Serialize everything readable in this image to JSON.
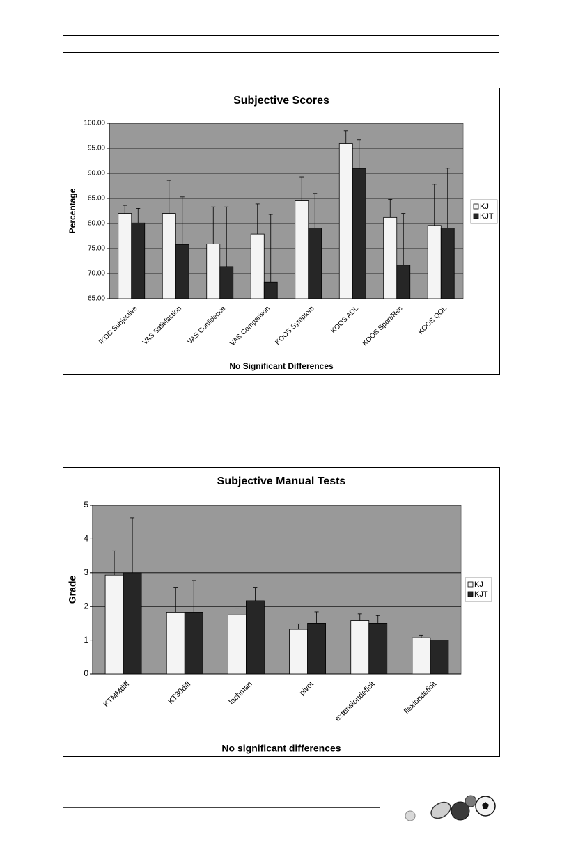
{
  "charts": [
    {
      "type": "bar",
      "title": "Subjective Scores",
      "xlabel": "No Significant Differences",
      "ylabel": "Percentage",
      "ylim": [
        65,
        100
      ],
      "yticks": [
        "65.00",
        "70.00",
        "75.00",
        "80.00",
        "85.00",
        "90.00",
        "95.00",
        "100.00"
      ],
      "categories": [
        "IKDC Subjective",
        "VAS Satisfaction",
        "VAS Confidence",
        "VAS Comparison",
        "KOOS Symptom",
        "KOOS ADL",
        "KOOS Sport/Rec",
        "KOOS QOL"
      ],
      "series": [
        {
          "name": "KJ",
          "values": [
            82.0,
            82.0,
            75.9,
            77.9,
            84.5,
            95.9,
            81.2,
            79.6
          ],
          "errors": [
            1.6,
            6.6,
            7.4,
            6.0,
            4.8,
            2.6,
            3.6,
            8.2
          ]
        },
        {
          "name": "KJT",
          "values": [
            80.1,
            75.8,
            71.4,
            68.3,
            79.1,
            90.9,
            71.7,
            79.1
          ],
          "errors": [
            2.9,
            9.5,
            11.9,
            13.5,
            6.9,
            5.8,
            10.3,
            11.9
          ]
        }
      ],
      "grid": true,
      "legend": "right",
      "colors": {
        "plot_bg": "#999999",
        "kj": "#f4f4f4",
        "kjt": "#262626"
      }
    },
    {
      "type": "bar",
      "title": "Subjective Manual Tests",
      "xlabel": "No significant differences",
      "ylabel": "Grade",
      "ylim": [
        0,
        5
      ],
      "yticks": [
        "0",
        "1",
        "2",
        "3",
        "4",
        "5"
      ],
      "categories": [
        "KTMMdiff",
        "KT30diff",
        "lachman",
        "pivot",
        "extensiondeficit",
        "flexiondeficit"
      ],
      "series": [
        {
          "name": "KJ",
          "values": [
            2.93,
            1.83,
            1.75,
            1.32,
            1.58,
            1.07
          ],
          "errors": [
            0.72,
            0.74,
            0.2,
            0.16,
            0.2,
            0.08
          ]
        },
        {
          "name": "KJT",
          "values": [
            3.0,
            1.83,
            2.17,
            1.5,
            1.5,
            1.0
          ],
          "errors": [
            1.63,
            0.94,
            0.4,
            0.34,
            0.23,
            0.0
          ]
        }
      ],
      "grid": true,
      "legend": "right",
      "colors": {
        "plot_bg": "#999999",
        "kj": "#f4f4f4",
        "kjt": "#262626"
      }
    }
  ]
}
